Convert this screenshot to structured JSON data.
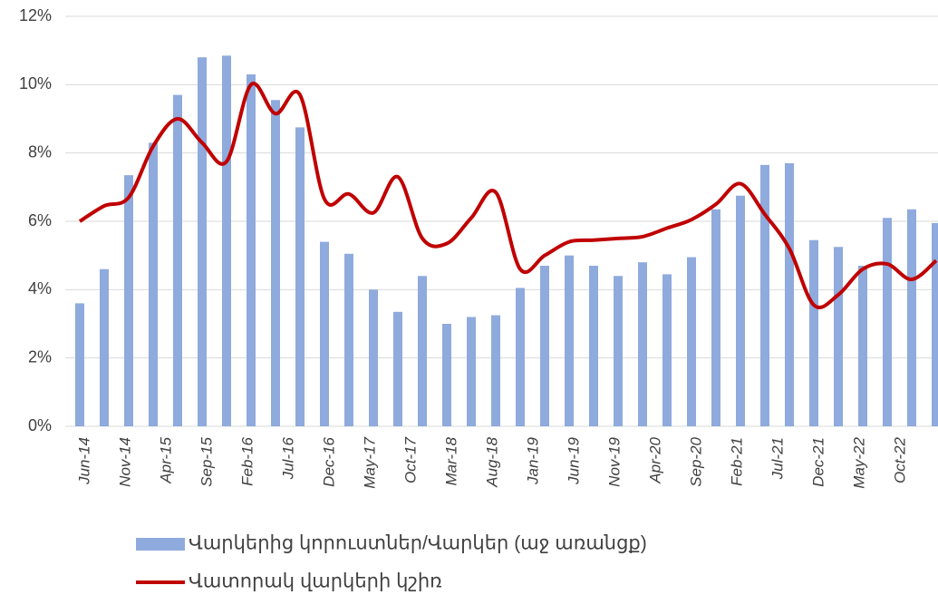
{
  "chart_data": {
    "type": "bar_line",
    "x": [
      "2014-06",
      "2014-09",
      "2014-12",
      "2015-03",
      "2015-06",
      "2015-09",
      "2015-12",
      "2016-03",
      "2016-06",
      "2016-09",
      "2016-12",
      "2017-03",
      "2017-06",
      "2017-09",
      "2017-12",
      "2018-03",
      "2018-06",
      "2018-09",
      "2018-12",
      "2019-03",
      "2019-06",
      "2019-09",
      "2019-12",
      "2020-03",
      "2020-06",
      "2020-09",
      "2020-12",
      "2021-03",
      "2021-06",
      "2021-09",
      "2021-12",
      "2022-03",
      "2022-06",
      "2022-09",
      "2022-12",
      "2023-03"
    ],
    "series": [
      {
        "name": "Վարկերից կորուստներ/Վարկեր (աջ առանցք)",
        "type": "bar",
        "color": "#8faadc",
        "values": [
          3.6,
          4.6,
          7.35,
          8.3,
          9.7,
          10.8,
          10.85,
          10.3,
          9.55,
          8.75,
          5.4,
          5.05,
          4.0,
          3.35,
          4.4,
          3.0,
          3.2,
          3.25,
          4.05,
          4.7,
          5.0,
          4.7,
          4.4,
          4.8,
          4.45,
          4.95,
          6.35,
          6.75,
          7.65,
          7.7,
          5.45,
          5.25,
          4.7,
          6.1,
          6.35,
          5.95
        ]
      },
      {
        "name": "Վատորակ վարկերի կշիռ",
        "type": "line",
        "color": "#c00000",
        "values": [
          6.0,
          6.45,
          6.7,
          8.2,
          9.0,
          8.3,
          7.75,
          10.0,
          9.15,
          9.7,
          6.65,
          6.8,
          6.25,
          7.3,
          5.5,
          5.35,
          6.1,
          6.85,
          4.6,
          5.0,
          5.4,
          5.45,
          5.5,
          5.55,
          5.8,
          6.05,
          6.5,
          7.1,
          6.2,
          5.2,
          3.55,
          3.85,
          4.6,
          4.75,
          4.3,
          4.85
        ]
      }
    ],
    "xlim": [
      "2014-06",
      "2023-03"
    ],
    "xticks": [
      {
        "value": "2014-06",
        "label": "Jun-14"
      },
      {
        "value": "2014-11",
        "label": "Nov-14"
      },
      {
        "value": "2015-04",
        "label": "Apr-15"
      },
      {
        "value": "2015-09",
        "label": "Sep-15"
      },
      {
        "value": "2016-02",
        "label": "Feb-16"
      },
      {
        "value": "2016-07",
        "label": "Jul-16"
      },
      {
        "value": "2016-12",
        "label": "Dec-16"
      },
      {
        "value": "2017-05",
        "label": "May-17"
      },
      {
        "value": "2017-10",
        "label": "Oct-17"
      },
      {
        "value": "2018-03",
        "label": "Mar-18"
      },
      {
        "value": "2018-08",
        "label": "Aug-18"
      },
      {
        "value": "2019-01",
        "label": "Jan-19"
      },
      {
        "value": "2019-06",
        "label": "Jun-19"
      },
      {
        "value": "2019-11",
        "label": "Nov-19"
      },
      {
        "value": "2020-04",
        "label": "Apr-20"
      },
      {
        "value": "2020-09",
        "label": "Sep-20"
      },
      {
        "value": "2021-02",
        "label": "Feb-21"
      },
      {
        "value": "2021-07",
        "label": "Jul-21"
      },
      {
        "value": "2021-12",
        "label": "Dec-21"
      },
      {
        "value": "2022-05",
        "label": "May-22"
      },
      {
        "value": "2022-10",
        "label": "Oct-22"
      }
    ],
    "ylim": [
      0,
      12
    ],
    "yticks": [
      {
        "value": 0,
        "label": "0%"
      },
      {
        "value": 2,
        "label": "2%"
      },
      {
        "value": 4,
        "label": "4%"
      },
      {
        "value": 6,
        "label": "6%"
      },
      {
        "value": 8,
        "label": "8%"
      },
      {
        "value": 10,
        "label": "10%"
      },
      {
        "value": 12,
        "label": "12%"
      }
    ],
    "grid": true
  }
}
